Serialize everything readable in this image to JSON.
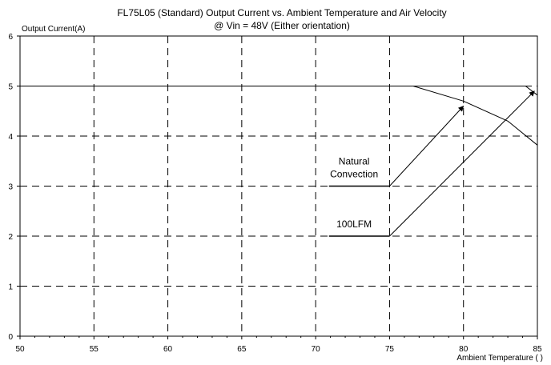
{
  "chart_data": {
    "type": "line",
    "title": "FL75L05 (Standard) Output Current vs. Ambient Temperature and Air Velocity",
    "subtitle": "@ Vin = 48V (Either orientation)",
    "ylabel": "Output Current(A)",
    "xlabel": "Ambient Temperature (   )",
    "xlim": [
      50,
      85
    ],
    "ylim": [
      0,
      6
    ],
    "x_ticks": [
      "50",
      "55",
      "60",
      "65",
      "70",
      "75",
      "80",
      "85"
    ],
    "y_ticks": [
      "0",
      "1",
      "2",
      "3",
      "4",
      "5",
      "6"
    ],
    "grid": true,
    "series": [
      {
        "name": "Natural Convection",
        "x": [
          50,
          76.6,
          80,
          83,
          85
        ],
        "y": [
          5,
          5,
          4.7,
          4.3,
          3.82
        ]
      },
      {
        "name": "100LFM",
        "x": [
          50,
          84.2,
          85
        ],
        "y": [
          5,
          5,
          4.82
        ]
      }
    ],
    "legend_samples": [
      {
        "name": "Natural Convection",
        "y": 3,
        "x": [
          70.9,
          75
        ]
      },
      {
        "name": "100LFM",
        "y": 2,
        "x": [
          70.9,
          75
        ]
      }
    ],
    "annotations": [
      {
        "lines": [
          "Natural",
          "Convection"
        ],
        "from": [
          75,
          3
        ],
        "to": [
          80,
          4.6
        ]
      },
      {
        "lines": [
          "100LFM"
        ],
        "from": [
          75,
          2
        ],
        "to": [
          84.8,
          4.9
        ]
      }
    ]
  }
}
